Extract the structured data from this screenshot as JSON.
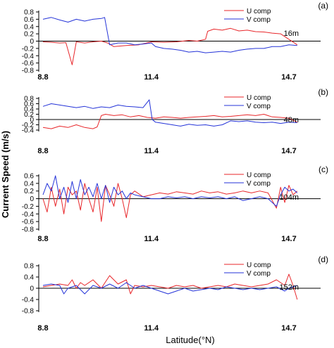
{
  "figure": {
    "ylabel": "Current Speed (m/s)",
    "xlabel": "Latitude(°N)",
    "colors": {
      "u": "#e8262a",
      "v": "#2433d8",
      "zero": "#000000"
    }
  },
  "chart_data": [
    {
      "type": "line",
      "panel": "(a)",
      "depth": "16m",
      "xlim": [
        8.8,
        14.7
      ],
      "ylim": [
        -0.8,
        0.8
      ],
      "yticks": [
        "0.8",
        "0.6",
        "0.4",
        "0.2",
        "0",
        "-0.2",
        "-0.4",
        "-0.6",
        "-0.8"
      ],
      "xticks": [
        "8.8",
        "11.4",
        "14.7"
      ],
      "series": [
        {
          "name": "U comp",
          "color": "#e8262a",
          "x": [
            8.8,
            9.0,
            9.2,
            9.35,
            9.5,
            9.6,
            9.8,
            10.0,
            10.2,
            10.35,
            10.5,
            10.8,
            11.1,
            11.4,
            11.7,
            12.0,
            12.3,
            12.5,
            12.7,
            12.75,
            12.9,
            13.1,
            13.3,
            13.5,
            13.7,
            13.9,
            14.1,
            14.3,
            14.5,
            14.7,
            14.9
          ],
          "values": [
            -0.02,
            -0.03,
            -0.05,
            -0.04,
            -0.65,
            -0.02,
            -0.05,
            -0.02,
            0.0,
            -0.05,
            -0.15,
            -0.12,
            -0.1,
            -0.02,
            -0.03,
            -0.02,
            0.02,
            0.0,
            0.05,
            0.27,
            0.33,
            0.3,
            0.35,
            0.28,
            0.3,
            0.26,
            0.25,
            0.22,
            0.2,
            0.05,
            -0.1
          ]
        },
        {
          "name": "V comp",
          "color": "#2433d8",
          "x": [
            8.8,
            9.0,
            9.2,
            9.4,
            9.6,
            9.8,
            10.0,
            10.2,
            10.28,
            10.4,
            10.6,
            10.8,
            11.0,
            11.2,
            11.4,
            11.5,
            11.7,
            11.9,
            12.1,
            12.3,
            12.5,
            12.7,
            12.9,
            13.1,
            13.3,
            13.5,
            13.7,
            13.9,
            14.1,
            14.3,
            14.5,
            14.7,
            14.9
          ],
          "values": [
            0.6,
            0.65,
            0.58,
            0.52,
            0.6,
            0.55,
            0.6,
            0.62,
            0.65,
            -0.1,
            -0.05,
            -0.05,
            -0.1,
            -0.08,
            -0.05,
            -0.15,
            -0.2,
            -0.22,
            -0.25,
            -0.3,
            -0.28,
            -0.32,
            -0.3,
            -0.28,
            -0.3,
            -0.25,
            -0.22,
            -0.2,
            -0.2,
            -0.15,
            -0.15,
            -0.1,
            -0.12
          ]
        }
      ]
    },
    {
      "type": "line",
      "panel": "(b)",
      "depth": "48m",
      "xlim": [
        8.8,
        14.7
      ],
      "ylim": [
        -0.4,
        0.8
      ],
      "yticks": [
        "0.8",
        "0.6",
        "0.4",
        "0.2",
        "0",
        "-0.2",
        "-0.4"
      ],
      "xticks": [
        "8.8",
        "11.4",
        "14.7"
      ],
      "series": [
        {
          "name": "U comp",
          "color": "#e8262a",
          "x": [
            8.8,
            9.0,
            9.2,
            9.4,
            9.6,
            9.8,
            10.0,
            10.1,
            10.2,
            10.3,
            10.5,
            10.7,
            10.9,
            11.1,
            11.3,
            11.5,
            11.7,
            11.9,
            12.1,
            12.3,
            12.5,
            12.7,
            12.9,
            13.1,
            13.3,
            13.5,
            13.7,
            13.9,
            14.1,
            14.3,
            14.5,
            14.7,
            14.9
          ],
          "values": [
            -0.3,
            -0.35,
            -0.25,
            -0.3,
            -0.2,
            -0.3,
            -0.35,
            -0.28,
            0.15,
            0.2,
            0.15,
            0.18,
            0.1,
            0.15,
            0.08,
            0.05,
            0.1,
            0.08,
            0.05,
            0.08,
            0.1,
            0.12,
            0.15,
            0.1,
            0.12,
            0.15,
            0.18,
            0.15,
            0.2,
            0.1,
            0.08,
            0.05,
            -0.1
          ]
        },
        {
          "name": "V comp",
          "color": "#2433d8",
          "x": [
            8.8,
            9.0,
            9.2,
            9.4,
            9.6,
            9.8,
            10.0,
            10.2,
            10.4,
            10.6,
            10.8,
            11.0,
            11.2,
            11.35,
            11.42,
            11.5,
            11.7,
            11.9,
            12.1,
            12.3,
            12.5,
            12.7,
            12.9,
            13.1,
            13.3,
            13.5,
            13.7,
            13.9,
            14.1,
            14.3,
            14.5,
            14.7,
            14.9
          ],
          "values": [
            0.5,
            0.6,
            0.55,
            0.5,
            0.45,
            0.5,
            0.42,
            0.48,
            0.45,
            0.55,
            0.5,
            0.48,
            0.45,
            0.75,
            0.0,
            -0.1,
            -0.15,
            -0.2,
            -0.25,
            -0.18,
            -0.22,
            -0.2,
            -0.25,
            -0.2,
            -0.05,
            -0.08,
            -0.05,
            -0.1,
            -0.12,
            -0.1,
            -0.15,
            -0.1,
            -0.12
          ]
        }
      ]
    },
    {
      "type": "line",
      "panel": "(c)",
      "depth": "104m",
      "xlim": [
        8.8,
        14.7
      ],
      "ylim": [
        -0.8,
        0.6
      ],
      "yticks": [
        "0.6",
        "0.4",
        "0.2",
        "0",
        "-0.2",
        "-0.4",
        "-0.6",
        "-0.8"
      ],
      "xticks": [
        "8.8",
        "11.4",
        "14.7"
      ],
      "series": [
        {
          "name": "U comp",
          "color": "#e8262a",
          "x": [
            8.8,
            8.9,
            9.0,
            9.1,
            9.2,
            9.3,
            9.4,
            9.5,
            9.6,
            9.7,
            9.8,
            9.9,
            10.0,
            10.1,
            10.2,
            10.3,
            10.4,
            10.5,
            10.6,
            10.7,
            10.8,
            10.9,
            11.0,
            11.2,
            11.4,
            11.6,
            11.8,
            12.0,
            12.2,
            12.4,
            12.6,
            12.8,
            13.0,
            13.2,
            13.4,
            13.6,
            13.8,
            14.0,
            14.2,
            14.4,
            14.5,
            14.6,
            14.7,
            14.8,
            14.9
          ],
          "values": [
            0.0,
            -0.35,
            0.3,
            -0.2,
            0.25,
            -0.4,
            0.3,
            0.1,
            0.2,
            -0.3,
            0.4,
            0.0,
            -0.35,
            0.3,
            -0.6,
            0.35,
            0.1,
            -0.2,
            0.4,
            0.0,
            -0.5,
            0.1,
            0.2,
            0.05,
            0.1,
            0.15,
            0.12,
            0.18,
            0.15,
            0.12,
            0.2,
            0.15,
            0.18,
            0.12,
            0.15,
            0.2,
            0.15,
            0.2,
            0.15,
            -0.25,
            0.3,
            -0.1,
            0.35,
            0.1,
            0.2
          ]
        },
        {
          "name": "V comp",
          "color": "#2433d8",
          "x": [
            8.8,
            8.9,
            9.0,
            9.1,
            9.2,
            9.3,
            9.4,
            9.5,
            9.6,
            9.7,
            9.8,
            9.9,
            10.0,
            10.1,
            10.2,
            10.3,
            10.4,
            10.5,
            10.6,
            10.7,
            10.8,
            10.9,
            11.0,
            11.2,
            11.4,
            11.6,
            11.8,
            12.0,
            12.2,
            12.4,
            12.6,
            12.8,
            13.0,
            13.2,
            13.4,
            13.6,
            13.8,
            14.0,
            14.2,
            14.4,
            14.5,
            14.6,
            14.7,
            14.8,
            14.9
          ],
          "values": [
            0.1,
            0.4,
            0.2,
            0.6,
            0.0,
            0.3,
            -0.1,
            0.45,
            0.0,
            0.5,
            0.1,
            0.3,
            0.05,
            0.4,
            0.0,
            0.35,
            -0.1,
            0.3,
            0.1,
            0.2,
            0.0,
            0.15,
            0.1,
            0.05,
            0.0,
            0.0,
            0.05,
            0.02,
            0.05,
            0.0,
            0.05,
            0.02,
            0.05,
            0.0,
            0.05,
            -0.05,
            0.0,
            0.05,
            0.0,
            -0.2,
            0.1,
            0.3,
            0.2,
            0.25,
            0.15
          ]
        }
      ]
    },
    {
      "type": "line",
      "panel": "(d)",
      "depth": "152m",
      "xlim": [
        8.8,
        14.7
      ],
      "ylim": [
        -0.8,
        0.8
      ],
      "yticks": [
        "0.8",
        "0.4",
        "0",
        "-0.4",
        "-0.8"
      ],
      "xticks": [
        "8.8",
        "11.4",
        "14.7"
      ],
      "series": [
        {
          "name": "U comp",
          "color": "#e8262a",
          "x": [
            8.8,
            9.0,
            9.2,
            9.4,
            9.5,
            9.6,
            9.7,
            9.8,
            10.0,
            10.2,
            10.4,
            10.6,
            10.8,
            10.9,
            11.0,
            11.2,
            11.4,
            11.6,
            11.8,
            12.0,
            12.2,
            12.4,
            12.6,
            12.8,
            13.0,
            13.2,
            13.4,
            13.6,
            13.8,
            14.0,
            14.2,
            14.4,
            14.6,
            14.7,
            14.8,
            14.9
          ],
          "values": [
            0.05,
            0.1,
            0.15,
            0.1,
            0.3,
            0.0,
            0.2,
            0.1,
            0.3,
            0.0,
            0.45,
            0.15,
            0.3,
            -0.2,
            0.1,
            0.05,
            0.1,
            0.05,
            0.0,
            0.1,
            0.05,
            0.1,
            0.0,
            0.05,
            0.1,
            0.05,
            0.15,
            0.1,
            0.05,
            0.1,
            0.15,
            0.3,
            0.1,
            0.5,
            0.1,
            -0.4
          ]
        },
        {
          "name": "V comp",
          "color": "#2433d8",
          "x": [
            8.8,
            9.0,
            9.2,
            9.3,
            9.4,
            9.5,
            9.6,
            9.8,
            10.0,
            10.2,
            10.4,
            10.6,
            10.8,
            11.0,
            11.2,
            11.4,
            11.6,
            11.8,
            12.0,
            12.2,
            12.4,
            12.6,
            12.8,
            13.0,
            13.2,
            13.4,
            13.6,
            13.8,
            14.0,
            14.2,
            14.4,
            14.6,
            14.7,
            14.8,
            14.9
          ],
          "values": [
            0.1,
            0.15,
            0.1,
            -0.2,
            0.0,
            0.05,
            0.1,
            -0.2,
            0.1,
            0.0,
            0.15,
            0.0,
            0.2,
            0.0,
            0.1,
            0.0,
            -0.1,
            -0.2,
            -0.1,
            0.0,
            -0.1,
            -0.05,
            0.0,
            -0.05,
            0.05,
            0.0,
            -0.05,
            0.0,
            -0.05,
            0.0,
            0.05,
            -0.1,
            0.0,
            0.05,
            0.1
          ]
        }
      ]
    }
  ]
}
